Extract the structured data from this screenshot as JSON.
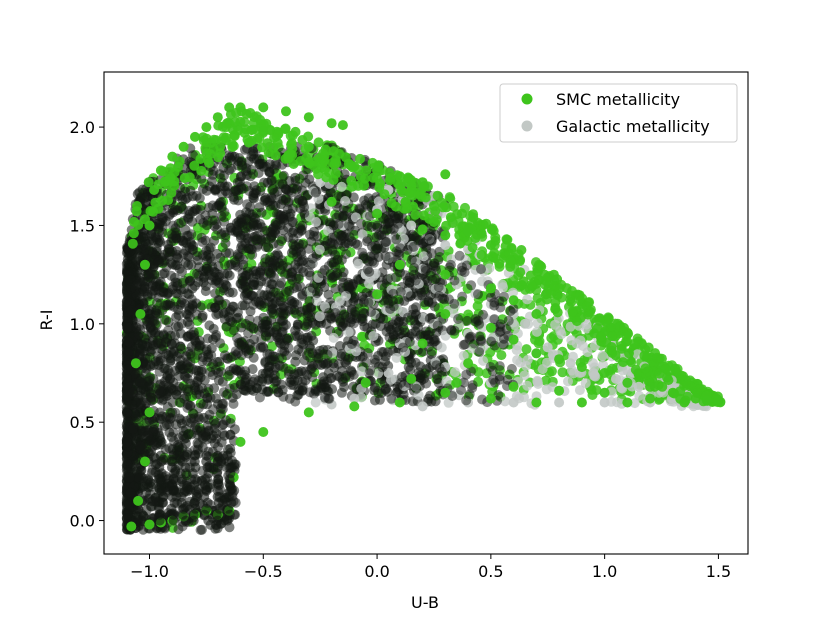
{
  "chart_data": {
    "type": "scatter",
    "title": "",
    "xlabel": "U-B",
    "ylabel": "R-I",
    "xlim": [
      -1.2,
      1.63
    ],
    "ylim": [
      -0.17,
      2.28
    ],
    "xticks": [
      -1.0,
      -0.5,
      0.0,
      0.5,
      1.0,
      1.5
    ],
    "xtick_labels": [
      "−1.0",
      "−0.5",
      "0.0",
      "0.5",
      "1.0",
      "1.5"
    ],
    "yticks": [
      0.0,
      0.5,
      1.0,
      1.5,
      2.0
    ],
    "ytick_labels": [
      "0.0",
      "0.5",
      "1.0",
      "1.5",
      "2.0"
    ],
    "grid": false,
    "legend_position": "top-right",
    "series": [
      {
        "name": "SMC metallicity",
        "color": "#3ec41c",
        "points": [
          [
            -1.08,
            -0.03
          ],
          [
            -1.05,
            0.1
          ],
          [
            -1.02,
            0.3
          ],
          [
            -1.0,
            0.55
          ],
          [
            -1.06,
            0.8
          ],
          [
            -1.04,
            1.05
          ],
          [
            -1.02,
            1.3
          ],
          [
            -1.0,
            1.5
          ],
          [
            -0.98,
            1.68
          ],
          [
            -0.95,
            1.78
          ],
          [
            -0.9,
            1.85
          ],
          [
            -0.85,
            1.9
          ],
          [
            -0.8,
            1.95
          ],
          [
            -0.75,
            2.0
          ],
          [
            -0.7,
            2.05
          ],
          [
            -0.65,
            2.1
          ],
          [
            -0.6,
            2.1
          ],
          [
            -0.5,
            2.1
          ],
          [
            -0.4,
            2.08
          ],
          [
            -0.3,
            2.05
          ],
          [
            -0.2,
            2.02
          ],
          [
            -0.15,
            2.01
          ],
          [
            -0.5,
            1.98
          ],
          [
            -0.3,
            1.9
          ],
          [
            -0.1,
            1.8
          ],
          [
            0.0,
            1.78
          ],
          [
            0.1,
            1.75
          ],
          [
            0.2,
            1.72
          ],
          [
            0.3,
            1.76
          ],
          [
            -0.2,
            1.62
          ],
          [
            0.0,
            1.56
          ],
          [
            0.2,
            1.48
          ],
          [
            0.3,
            1.45
          ],
          [
            0.4,
            1.47
          ],
          [
            0.5,
            1.4
          ],
          [
            0.1,
            1.3
          ],
          [
            0.3,
            1.25
          ],
          [
            0.5,
            1.18
          ],
          [
            0.6,
            1.12
          ],
          [
            0.7,
            1.05
          ],
          [
            0.3,
            1.05
          ],
          [
            0.5,
            0.98
          ],
          [
            0.6,
            0.92
          ],
          [
            0.7,
            0.85
          ],
          [
            0.8,
            0.82
          ],
          [
            0.9,
            0.78
          ],
          [
            1.0,
            0.75
          ],
          [
            1.1,
            0.7
          ],
          [
            1.2,
            0.68
          ],
          [
            1.3,
            0.65
          ],
          [
            1.4,
            0.62
          ],
          [
            1.5,
            0.61
          ],
          [
            1.45,
            0.61
          ],
          [
            1.35,
            0.6
          ],
          [
            1.1,
            0.6
          ],
          [
            0.9,
            0.6
          ],
          [
            0.7,
            0.6
          ],
          [
            0.5,
            0.62
          ],
          [
            0.3,
            0.65
          ],
          [
            0.1,
            0.6
          ],
          [
            -0.1,
            0.58
          ],
          [
            -0.3,
            0.55
          ],
          [
            -0.5,
            0.45
          ],
          [
            -0.6,
            0.4
          ],
          [
            -0.63,
            0.22
          ],
          [
            -0.65,
            0.05
          ],
          [
            -0.7,
            0.03
          ],
          [
            -0.75,
            0.05
          ],
          [
            -0.8,
            0.03
          ],
          [
            -0.85,
            0.02
          ],
          [
            -0.9,
            0.0
          ],
          [
            -0.95,
            -0.01
          ],
          [
            -1.0,
            -0.02
          ],
          [
            0.0,
            1.15
          ],
          [
            0.2,
            0.9
          ],
          [
            0.4,
            0.8
          ],
          [
            -0.05,
            0.7
          ],
          [
            0.15,
            0.72
          ],
          [
            0.35,
            0.7
          ],
          [
            0.6,
            0.68
          ],
          [
            0.8,
            0.66
          ],
          [
            1.0,
            0.65
          ],
          [
            1.2,
            0.62
          ],
          [
            0.25,
            1.6
          ]
        ]
      },
      {
        "name": "Galactic metallicity",
        "color": "#c2c8c5",
        "points": [
          [
            -0.25,
            1.72
          ],
          [
            -0.1,
            1.7
          ],
          [
            0.05,
            1.68
          ],
          [
            0.15,
            1.66
          ],
          [
            0.25,
            1.65
          ],
          [
            0.0,
            1.58
          ],
          [
            0.15,
            1.5
          ],
          [
            0.3,
            1.4
          ],
          [
            0.4,
            1.38
          ],
          [
            0.45,
            1.35
          ],
          [
            0.2,
            1.28
          ],
          [
            0.35,
            1.2
          ],
          [
            0.5,
            1.1
          ],
          [
            0.6,
            1.05
          ],
          [
            0.65,
            1.0
          ],
          [
            0.4,
            0.95
          ],
          [
            0.55,
            0.9
          ],
          [
            0.7,
            0.85
          ],
          [
            0.75,
            0.88
          ],
          [
            0.85,
            0.8
          ],
          [
            0.95,
            0.75
          ],
          [
            1.05,
            0.72
          ],
          [
            1.15,
            0.68
          ],
          [
            1.25,
            0.66
          ],
          [
            1.35,
            0.62
          ],
          [
            1.4,
            0.6
          ],
          [
            0.2,
            0.58
          ],
          [
            0.4,
            0.6
          ],
          [
            0.6,
            0.6
          ],
          [
            0.8,
            0.6
          ],
          [
            1.0,
            0.6
          ],
          [
            1.2,
            0.6
          ],
          [
            -0.1,
            0.62
          ],
          [
            -0.2,
            0.59
          ],
          [
            0.05,
            0.75
          ],
          [
            0.3,
            0.78
          ],
          [
            0.5,
            0.7
          ],
          [
            0.1,
            0.9
          ],
          [
            0.25,
            1.0
          ],
          [
            -0.05,
            1.25
          ],
          [
            0.1,
            1.4
          ],
          [
            -0.15,
            1.5
          ]
        ]
      },
      {
        "name": "",
        "color": "#131713",
        "points": []
      }
    ]
  }
}
